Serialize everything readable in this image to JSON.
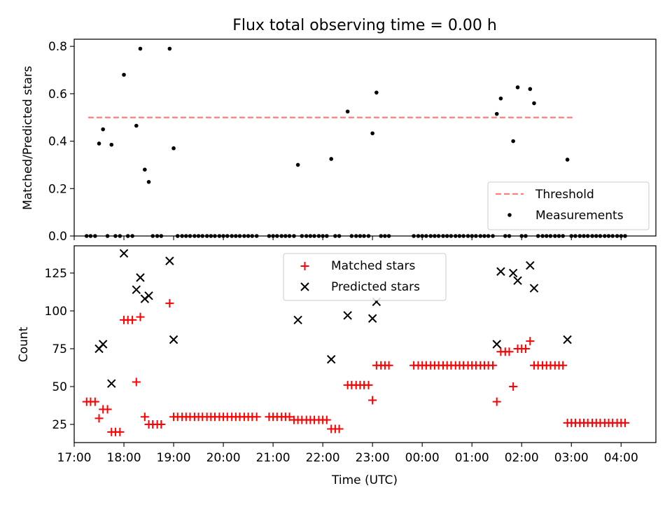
{
  "title": "Flux total observing time = 0.00 h",
  "colors": {
    "threshold": "#ff7f7f",
    "measurements": "#000000",
    "matched": "#ff0000",
    "predicted": "#000000"
  },
  "chart_data": [
    {
      "type": "scatter",
      "title": "Flux total observing time = 0.00 h",
      "ylabel": "Matched/Predicted stars",
      "xlabel": "",
      "x_unit": "hours after 00:00 UTC of observing day (ticks shown as HH:00)",
      "xlim": [
        17.0,
        28.7
      ],
      "ylim": [
        0.0,
        0.83
      ],
      "yticks": [
        "0.0",
        "0.2",
        "0.4",
        "0.6",
        "0.8"
      ],
      "legend_position": "lower right",
      "threshold": {
        "name": "Threshold",
        "value": 0.5,
        "x_range": [
          17.28,
          27.08
        ]
      },
      "measurements": {
        "name": "Measurements",
        "points": [
          [
            17.5,
            0.39
          ],
          [
            17.58,
            0.45
          ],
          [
            17.75,
            0.385
          ],
          [
            18.0,
            0.68
          ],
          [
            18.25,
            0.465
          ],
          [
            18.33,
            0.79
          ],
          [
            18.42,
            0.28
          ],
          [
            18.5,
            0.228
          ],
          [
            18.92,
            0.79
          ],
          [
            19.0,
            0.37
          ],
          [
            21.5,
            0.3
          ],
          [
            22.17,
            0.325
          ],
          [
            22.5,
            0.525
          ],
          [
            23.0,
            0.433
          ],
          [
            23.08,
            0.605
          ],
          [
            25.5,
            0.515
          ],
          [
            25.58,
            0.58
          ],
          [
            25.83,
            0.4
          ],
          [
            25.92,
            0.627
          ],
          [
            26.17,
            0.62
          ],
          [
            26.25,
            0.56
          ],
          [
            26.92,
            0.322
          ]
        ],
        "zero_points": [
          17.25,
          17.33,
          17.42,
          17.67,
          17.83,
          17.92,
          18.08,
          18.17,
          18.58,
          18.67,
          18.75,
          19.08,
          19.17,
          19.25,
          19.33,
          19.42,
          19.5,
          19.58,
          19.67,
          19.75,
          19.83,
          19.92,
          20.0,
          20.08,
          20.17,
          20.25,
          20.33,
          20.42,
          20.5,
          20.58,
          20.67,
          20.92,
          21.0,
          21.08,
          21.17,
          21.25,
          21.33,
          21.42,
          21.58,
          21.67,
          21.75,
          21.83,
          21.92,
          22.0,
          22.08,
          22.25,
          22.33,
          22.58,
          22.67,
          22.75,
          22.83,
          22.92,
          23.17,
          23.25,
          23.33,
          23.83,
          23.92,
          24.0,
          24.08,
          24.17,
          24.25,
          24.33,
          24.42,
          24.5,
          24.58,
          24.67,
          24.75,
          24.83,
          24.92,
          25.0,
          25.08,
          25.17,
          25.25,
          25.33,
          25.42,
          25.67,
          25.75,
          26.0,
          26.08,
          26.33,
          26.42,
          26.5,
          26.58,
          26.67,
          26.75,
          26.83,
          27.0,
          27.08,
          27.17,
          27.25,
          27.33,
          27.42,
          27.5,
          27.58,
          27.67,
          27.75,
          27.83,
          27.92,
          28.0,
          28.08
        ]
      }
    },
    {
      "type": "scatter",
      "ylabel": "Count",
      "xlabel": "Time (UTC)",
      "xlim": [
        17.0,
        28.7
      ],
      "ylim": [
        13,
        143
      ],
      "yticks": [
        "25",
        "50",
        "75",
        "100",
        "125"
      ],
      "xticks": [
        "17:00",
        "18:00",
        "19:00",
        "20:00",
        "21:00",
        "22:00",
        "23:00",
        "00:00",
        "01:00",
        "02:00",
        "03:00",
        "04:00"
      ],
      "legend_position": "upper center",
      "series": [
        {
          "name": "Matched stars",
          "marker": "+",
          "points": [
            [
              17.25,
              40
            ],
            [
              17.33,
              40
            ],
            [
              17.42,
              40
            ],
            [
              17.5,
              29
            ],
            [
              17.58,
              35
            ],
            [
              17.67,
              35
            ],
            [
              17.75,
              20
            ],
            [
              17.83,
              20
            ],
            [
              17.92,
              20
            ],
            [
              18.0,
              94
            ],
            [
              18.08,
              94
            ],
            [
              18.17,
              94
            ],
            [
              18.25,
              53
            ],
            [
              18.33,
              96
            ],
            [
              18.42,
              30
            ],
            [
              18.5,
              25
            ],
            [
              18.58,
              25
            ],
            [
              18.67,
              25
            ],
            [
              18.75,
              25
            ],
            [
              18.92,
              105
            ],
            [
              19.0,
              30
            ],
            [
              19.08,
              30
            ],
            [
              19.17,
              30
            ],
            [
              19.25,
              30
            ],
            [
              19.33,
              30
            ],
            [
              19.42,
              30
            ],
            [
              19.5,
              30
            ],
            [
              19.58,
              30
            ],
            [
              19.67,
              30
            ],
            [
              19.75,
              30
            ],
            [
              19.83,
              30
            ],
            [
              19.92,
              30
            ],
            [
              20.0,
              30
            ],
            [
              20.08,
              30
            ],
            [
              20.17,
              30
            ],
            [
              20.25,
              30
            ],
            [
              20.33,
              30
            ],
            [
              20.42,
              30
            ],
            [
              20.5,
              30
            ],
            [
              20.58,
              30
            ],
            [
              20.67,
              30
            ],
            [
              20.92,
              30
            ],
            [
              21.0,
              30
            ],
            [
              21.08,
              30
            ],
            [
              21.17,
              30
            ],
            [
              21.25,
              30
            ],
            [
              21.33,
              30
            ],
            [
              21.42,
              28
            ],
            [
              21.5,
              28
            ],
            [
              21.58,
              28
            ],
            [
              21.67,
              28
            ],
            [
              21.75,
              28
            ],
            [
              21.83,
              28
            ],
            [
              21.92,
              28
            ],
            [
              22.0,
              28
            ],
            [
              22.08,
              28
            ],
            [
              22.17,
              22
            ],
            [
              22.25,
              22
            ],
            [
              22.33,
              22
            ],
            [
              22.5,
              51
            ],
            [
              22.58,
              51
            ],
            [
              22.67,
              51
            ],
            [
              22.75,
              51
            ],
            [
              22.83,
              51
            ],
            [
              22.92,
              51
            ],
            [
              23.0,
              41
            ],
            [
              23.08,
              64
            ],
            [
              23.17,
              64
            ],
            [
              23.25,
              64
            ],
            [
              23.33,
              64
            ],
            [
              23.83,
              64
            ],
            [
              23.92,
              64
            ],
            [
              24.0,
              64
            ],
            [
              24.08,
              64
            ],
            [
              24.17,
              64
            ],
            [
              24.25,
              64
            ],
            [
              24.33,
              64
            ],
            [
              24.42,
              64
            ],
            [
              24.5,
              64
            ],
            [
              24.58,
              64
            ],
            [
              24.67,
              64
            ],
            [
              24.75,
              64
            ],
            [
              24.83,
              64
            ],
            [
              24.92,
              64
            ],
            [
              25.0,
              64
            ],
            [
              25.08,
              64
            ],
            [
              25.17,
              64
            ],
            [
              25.25,
              64
            ],
            [
              25.33,
              64
            ],
            [
              25.42,
              64
            ],
            [
              25.5,
              40
            ],
            [
              25.58,
              73
            ],
            [
              25.67,
              73
            ],
            [
              25.75,
              73
            ],
            [
              25.83,
              50
            ],
            [
              25.92,
              75
            ],
            [
              26.0,
              75
            ],
            [
              26.08,
              75
            ],
            [
              26.17,
              80
            ],
            [
              26.25,
              64
            ],
            [
              26.33,
              64
            ],
            [
              26.42,
              64
            ],
            [
              26.5,
              64
            ],
            [
              26.58,
              64
            ],
            [
              26.67,
              64
            ],
            [
              26.75,
              64
            ],
            [
              26.83,
              64
            ],
            [
              26.92,
              26
            ],
            [
              27.0,
              26
            ],
            [
              27.08,
              26
            ],
            [
              27.17,
              26
            ],
            [
              27.25,
              26
            ],
            [
              27.33,
              26
            ],
            [
              27.42,
              26
            ],
            [
              27.5,
              26
            ],
            [
              27.58,
              26
            ],
            [
              27.67,
              26
            ],
            [
              27.75,
              26
            ],
            [
              27.83,
              26
            ],
            [
              27.92,
              26
            ],
            [
              28.0,
              26
            ],
            [
              28.08,
              26
            ]
          ]
        },
        {
          "name": "Predicted stars",
          "marker": "x",
          "points": [
            [
              17.5,
              75
            ],
            [
              17.58,
              78
            ],
            [
              17.75,
              52
            ],
            [
              18.0,
              138
            ],
            [
              18.25,
              114
            ],
            [
              18.33,
              122
            ],
            [
              18.42,
              108
            ],
            [
              18.5,
              110
            ],
            [
              18.92,
              133
            ],
            [
              19.0,
              81
            ],
            [
              21.5,
              94
            ],
            [
              22.17,
              68
            ],
            [
              22.5,
              97
            ],
            [
              23.0,
              95
            ],
            [
              23.08,
              106
            ],
            [
              25.5,
              78
            ],
            [
              25.58,
              126
            ],
            [
              25.83,
              125
            ],
            [
              25.92,
              120
            ],
            [
              26.17,
              130
            ],
            [
              26.25,
              115
            ],
            [
              26.92,
              81
            ]
          ]
        }
      ]
    }
  ]
}
